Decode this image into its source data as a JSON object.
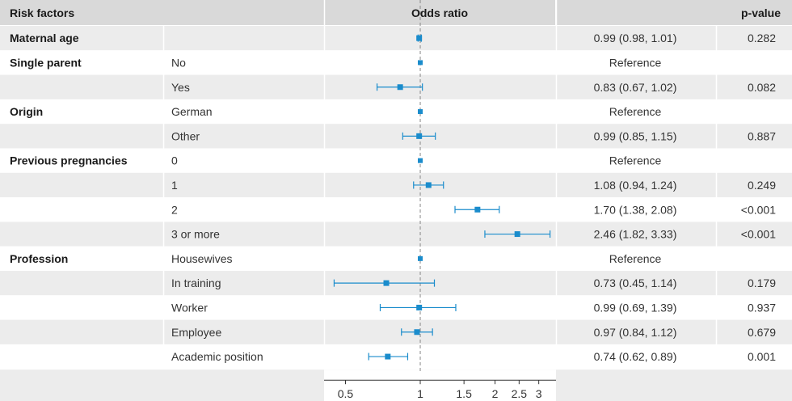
{
  "chart_data": {
    "type": "forest",
    "title": "",
    "x_axis": {
      "label": "",
      "scale": "log",
      "range": [
        0.41,
        3.52
      ],
      "ticks": [
        0.5,
        1,
        1.5,
        2,
        2.5,
        3
      ],
      "tick_labels": [
        "0.5",
        "1",
        "1.5",
        "2",
        "2.5",
        "3"
      ],
      "reference_line": 1
    },
    "headers": {
      "factors": "Risk factors",
      "odds": "Odds ratio",
      "pvalue": "p-value"
    },
    "rows": [
      {
        "factor": "Maternal age",
        "level": "",
        "or": 0.99,
        "lower": 0.98,
        "upper": 1.01,
        "ci_text": "0.99 (0.98, 1.01)",
        "p": "0.282"
      },
      {
        "factor": "Single parent",
        "level": "No",
        "or": 1.0,
        "lower": null,
        "upper": null,
        "ci_text": "Reference",
        "p": ""
      },
      {
        "factor": "",
        "level": "Yes",
        "or": 0.83,
        "lower": 0.67,
        "upper": 1.02,
        "ci_text": "0.83 (0.67, 1.02)",
        "p": "0.082"
      },
      {
        "factor": "Origin",
        "level": "German",
        "or": 1.0,
        "lower": null,
        "upper": null,
        "ci_text": "Reference",
        "p": ""
      },
      {
        "factor": "",
        "level": "Other",
        "or": 0.99,
        "lower": 0.85,
        "upper": 1.15,
        "ci_text": "0.99 (0.85, 1.15)",
        "p": "0.887"
      },
      {
        "factor": "Previous pregnancies",
        "level": "0",
        "or": 1.0,
        "lower": null,
        "upper": null,
        "ci_text": "Reference",
        "p": ""
      },
      {
        "factor": "",
        "level": "1",
        "or": 1.08,
        "lower": 0.94,
        "upper": 1.24,
        "ci_text": "1.08 (0.94, 1.24)",
        "p": "0.249"
      },
      {
        "factor": "",
        "level": "2",
        "or": 1.7,
        "lower": 1.38,
        "upper": 2.08,
        "ci_text": "1.70 (1.38, 2.08)",
        "p": "<0.001"
      },
      {
        "factor": "",
        "level": "3 or more",
        "or": 2.46,
        "lower": 1.82,
        "upper": 3.33,
        "ci_text": "2.46 (1.82, 3.33)",
        "p": "<0.001"
      },
      {
        "factor": "Profession",
        "level": "Housewives",
        "or": 1.0,
        "lower": null,
        "upper": null,
        "ci_text": "Reference",
        "p": ""
      },
      {
        "factor": "",
        "level": "In training",
        "or": 0.73,
        "lower": 0.45,
        "upper": 1.14,
        "ci_text": "0.73 (0.45, 1.14)",
        "p": "0.179"
      },
      {
        "factor": "",
        "level": "Worker",
        "or": 0.99,
        "lower": 0.69,
        "upper": 1.39,
        "ci_text": "0.99 (0.69, 1.39)",
        "p": "0.937"
      },
      {
        "factor": "",
        "level": "Employee",
        "or": 0.97,
        "lower": 0.84,
        "upper": 1.12,
        "ci_text": "0.97 (0.84, 1.12)",
        "p": "0.679"
      },
      {
        "factor": "",
        "level": "Academic position",
        "or": 0.74,
        "lower": 0.62,
        "upper": 0.89,
        "ci_text": "0.74 (0.62, 0.89)",
        "p": "0.001"
      }
    ],
    "colors": {
      "marker": "#1a8ccc",
      "header_bg": "#d9d9d9",
      "row_alt_bg": "#ececec",
      "reference_line": "#888888",
      "text": "#1a1a1a"
    },
    "grid": false,
    "legend": "none"
  }
}
